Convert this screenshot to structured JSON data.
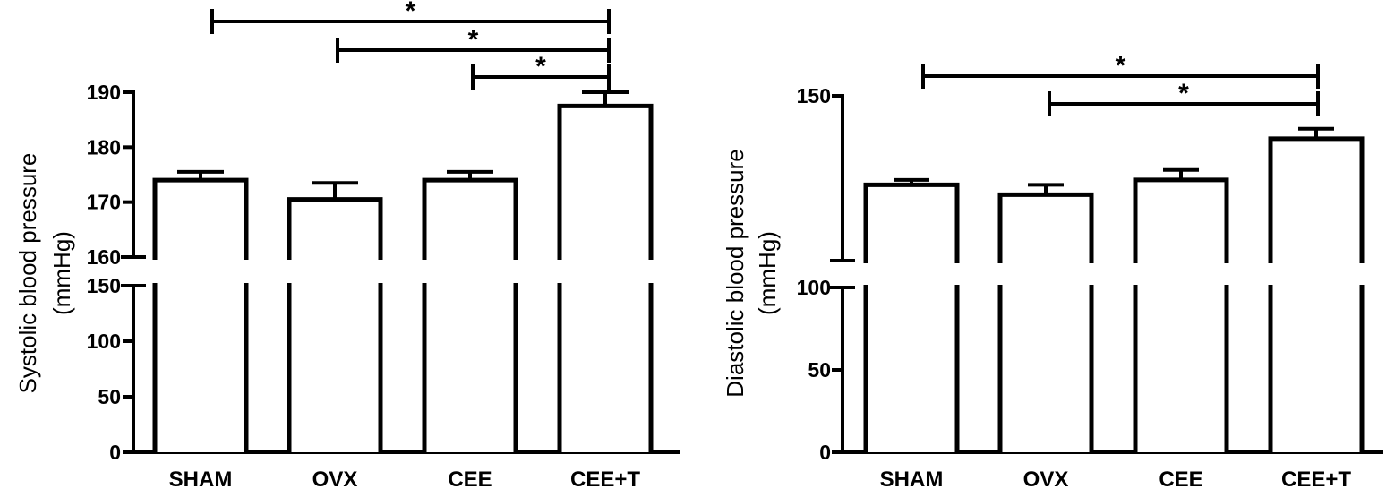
{
  "chart_data": [
    {
      "type": "bar",
      "categories": [
        "SHAM",
        "OVX",
        "CEE",
        "CEE+T"
      ],
      "values": [
        174,
        170.5,
        174,
        187.5
      ],
      "error": [
        1.5,
        3,
        1.5,
        2.5
      ],
      "ylabel": [
        "Systolic blood pressure",
        "(mmHg)"
      ],
      "ylim": [
        0,
        190
      ],
      "axis_break": [
        150,
        160
      ],
      "yticks_lower": [
        0,
        50,
        100,
        150
      ],
      "yticks_upper": [
        160,
        170,
        180,
        190
      ],
      "grid": false,
      "significance": [
        {
          "from": "SHAM",
          "to": "CEE+T",
          "label": "*"
        },
        {
          "from": "OVX",
          "to": "CEE+T",
          "label": "*"
        },
        {
          "from": "CEE",
          "to": "CEE+T",
          "label": "*"
        }
      ]
    },
    {
      "type": "bar",
      "categories": [
        "SHAM",
        "OVX",
        "CEE",
        "CEE+T"
      ],
      "values": [
        123,
        120,
        124.5,
        137
      ],
      "error": [
        1.5,
        3,
        3,
        3
      ],
      "ylabel": [
        "Diastolic blood pressure",
        "(mmHg)"
      ],
      "ylim": [
        0,
        150
      ],
      "axis_break": [
        100,
        100
      ],
      "yticks_lower": [
        0,
        50,
        100
      ],
      "yticks_upper": [
        150
      ],
      "grid": false,
      "significance": [
        {
          "from": "SHAM",
          "to": "CEE+T",
          "label": "*"
        },
        {
          "from": "OVX",
          "to": "CEE+T",
          "label": "*"
        }
      ]
    }
  ],
  "colors": {
    "bar_fill": "#ffffff",
    "stroke": "#000000"
  }
}
